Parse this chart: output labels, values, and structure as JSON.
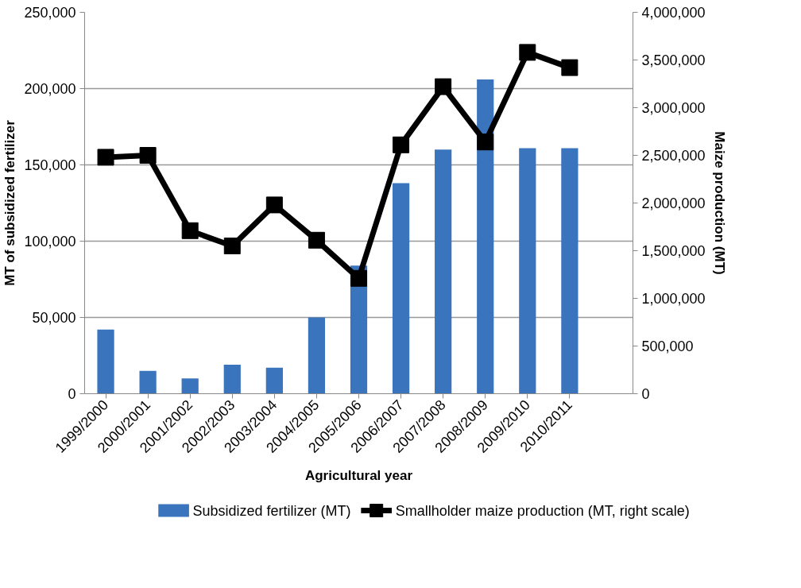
{
  "chart_data": {
    "type": "bar",
    "xlabel": "Agricultural year",
    "ylabel": "MT of subsidized fertilizer",
    "y2label": "Maize production (MT)",
    "categories": [
      "1999/2000",
      "2000/2001",
      "2001/2002",
      "2002/2003",
      "2003/2004",
      "2004/2005",
      "2005/2006",
      "2006/2007",
      "2007/2008",
      "2008/2009",
      "2009/2010",
      "2010/2011",
      null
    ],
    "series": [
      {
        "name": "Subsidized fertilizer (MT)",
        "color": "#3a74bd",
        "values": [
          42000,
          15000,
          10000,
          19000,
          17000,
          50000,
          84000,
          138000,
          160000,
          206000,
          161000,
          161000,
          null
        ]
      },
      {
        "name": "Smallholder maize production (MT, right scale)",
        "type": "line",
        "axis": "y2",
        "color": "#000000",
        "marker": "square",
        "values": [
          2480000,
          2500000,
          1710000,
          1550000,
          1980000,
          1610000,
          1210000,
          2610000,
          3220000,
          2640000,
          3580000,
          3420000,
          null
        ]
      }
    ],
    "ylim": [
      0,
      250000
    ],
    "yticks": [
      {
        "value": 0,
        "label": "0"
      },
      {
        "value": 50000,
        "label": "50,000"
      },
      {
        "value": 100000,
        "label": "100,000"
      },
      {
        "value": 150000,
        "label": "150,000"
      },
      {
        "value": 200000,
        "label": "200,000"
      },
      {
        "value": 250000,
        "label": "250,000"
      }
    ],
    "y2lim": [
      0,
      4000000
    ],
    "y2ticks": [
      {
        "value": 0,
        "label": "0"
      },
      {
        "value": 500000,
        "label": "500,000"
      },
      {
        "value": 1000000,
        "label": "1,000,000"
      },
      {
        "value": 1500000,
        "label": "1,500,000"
      },
      {
        "value": 2000000,
        "label": "2,000,000"
      },
      {
        "value": 2500000,
        "label": "2,500,000"
      },
      {
        "value": 3000000,
        "label": "3,000,000"
      },
      {
        "value": 3500000,
        "label": "3,500,000"
      },
      {
        "value": 4000000,
        "label": "4,000,000"
      }
    ],
    "grid": "y",
    "legend": "bottom"
  }
}
